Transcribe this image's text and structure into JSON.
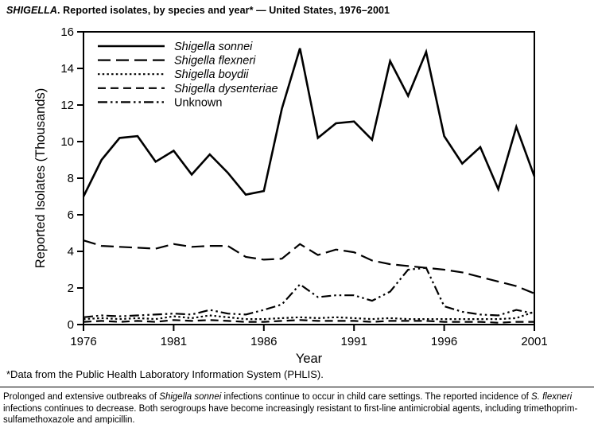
{
  "header": {
    "title_italic": "SHIGELLA",
    "title_rest": ". Reported isolates, by species and year* — United States, 1976–2001"
  },
  "chart_data": {
    "type": "line",
    "title": "",
    "xlabel": "Year",
    "ylabel": "Reported Isolates (Thousands)",
    "ylim": [
      0,
      16
    ],
    "ytick_step": 2,
    "xticks": [
      1976,
      1981,
      1986,
      1991,
      1996,
      2001
    ],
    "grid": false,
    "legend_position": "top-left",
    "line_color": "#000000",
    "years": [
      1976,
      1977,
      1978,
      1979,
      1980,
      1981,
      1982,
      1983,
      1984,
      1985,
      1986,
      1987,
      1988,
      1989,
      1990,
      1991,
      1992,
      1993,
      1994,
      1995,
      1996,
      1997,
      1998,
      1999,
      2000,
      2001
    ],
    "series": [
      {
        "name": "Shigella sonnei",
        "italic": true,
        "dash": "solid",
        "values": [
          7.0,
          9.0,
          10.2,
          10.3,
          8.9,
          9.5,
          8.2,
          9.3,
          8.3,
          7.1,
          7.3,
          11.8,
          15.1,
          10.2,
          11.0,
          11.1,
          10.1,
          14.4,
          12.5,
          14.9,
          10.3,
          8.8,
          9.7,
          7.4,
          10.8,
          8.1
        ]
      },
      {
        "name": "Shigella flexneri",
        "italic": true,
        "dash": "longdash",
        "values": [
          4.6,
          4.3,
          4.25,
          4.2,
          4.15,
          4.4,
          4.25,
          4.3,
          4.3,
          3.7,
          3.55,
          3.6,
          4.4,
          3.8,
          4.1,
          3.95,
          3.5,
          3.3,
          3.2,
          3.1,
          3.0,
          2.85,
          2.6,
          2.35,
          2.1,
          1.7
        ]
      },
      {
        "name": "Shigella boydii",
        "italic": true,
        "dash": "dotted",
        "values": [
          0.3,
          0.35,
          0.3,
          0.35,
          0.3,
          0.45,
          0.35,
          0.5,
          0.4,
          0.3,
          0.3,
          0.35,
          0.4,
          0.35,
          0.4,
          0.35,
          0.3,
          0.35,
          0.3,
          0.3,
          0.3,
          0.3,
          0.3,
          0.3,
          0.35,
          0.7
        ]
      },
      {
        "name": "Shigella dysenteriae",
        "italic": true,
        "dash": "dash",
        "values": [
          0.15,
          0.2,
          0.15,
          0.2,
          0.15,
          0.25,
          0.2,
          0.25,
          0.2,
          0.15,
          0.15,
          0.2,
          0.25,
          0.2,
          0.2,
          0.2,
          0.15,
          0.2,
          0.2,
          0.2,
          0.15,
          0.15,
          0.15,
          0.1,
          0.15,
          0.15
        ]
      },
      {
        "name": "Unknown",
        "italic": false,
        "dash": "dashdotdot",
        "values": [
          0.4,
          0.5,
          0.45,
          0.5,
          0.55,
          0.6,
          0.55,
          0.8,
          0.6,
          0.55,
          0.8,
          1.1,
          2.2,
          1.5,
          1.6,
          1.6,
          1.3,
          1.8,
          3.0,
          3.1,
          1.0,
          0.7,
          0.55,
          0.5,
          0.8,
          0.6
        ]
      }
    ]
  },
  "footnote": "*Data from the Public Health Laboratory Information System (PHLIS).",
  "caption": {
    "part1": "Prolonged and extensive outbreaks of ",
    "italic1": "Shigella sonnei",
    "part2": " infections continue to occur in child care settings. The reported incidence of ",
    "italic2": "S. flexneri",
    "part3": " infections continues to decrease. Both serogroups have become increasingly resistant to first-line antimicrobial agents, including trimethoprim-sulfamethoxazole and ampicillin."
  }
}
